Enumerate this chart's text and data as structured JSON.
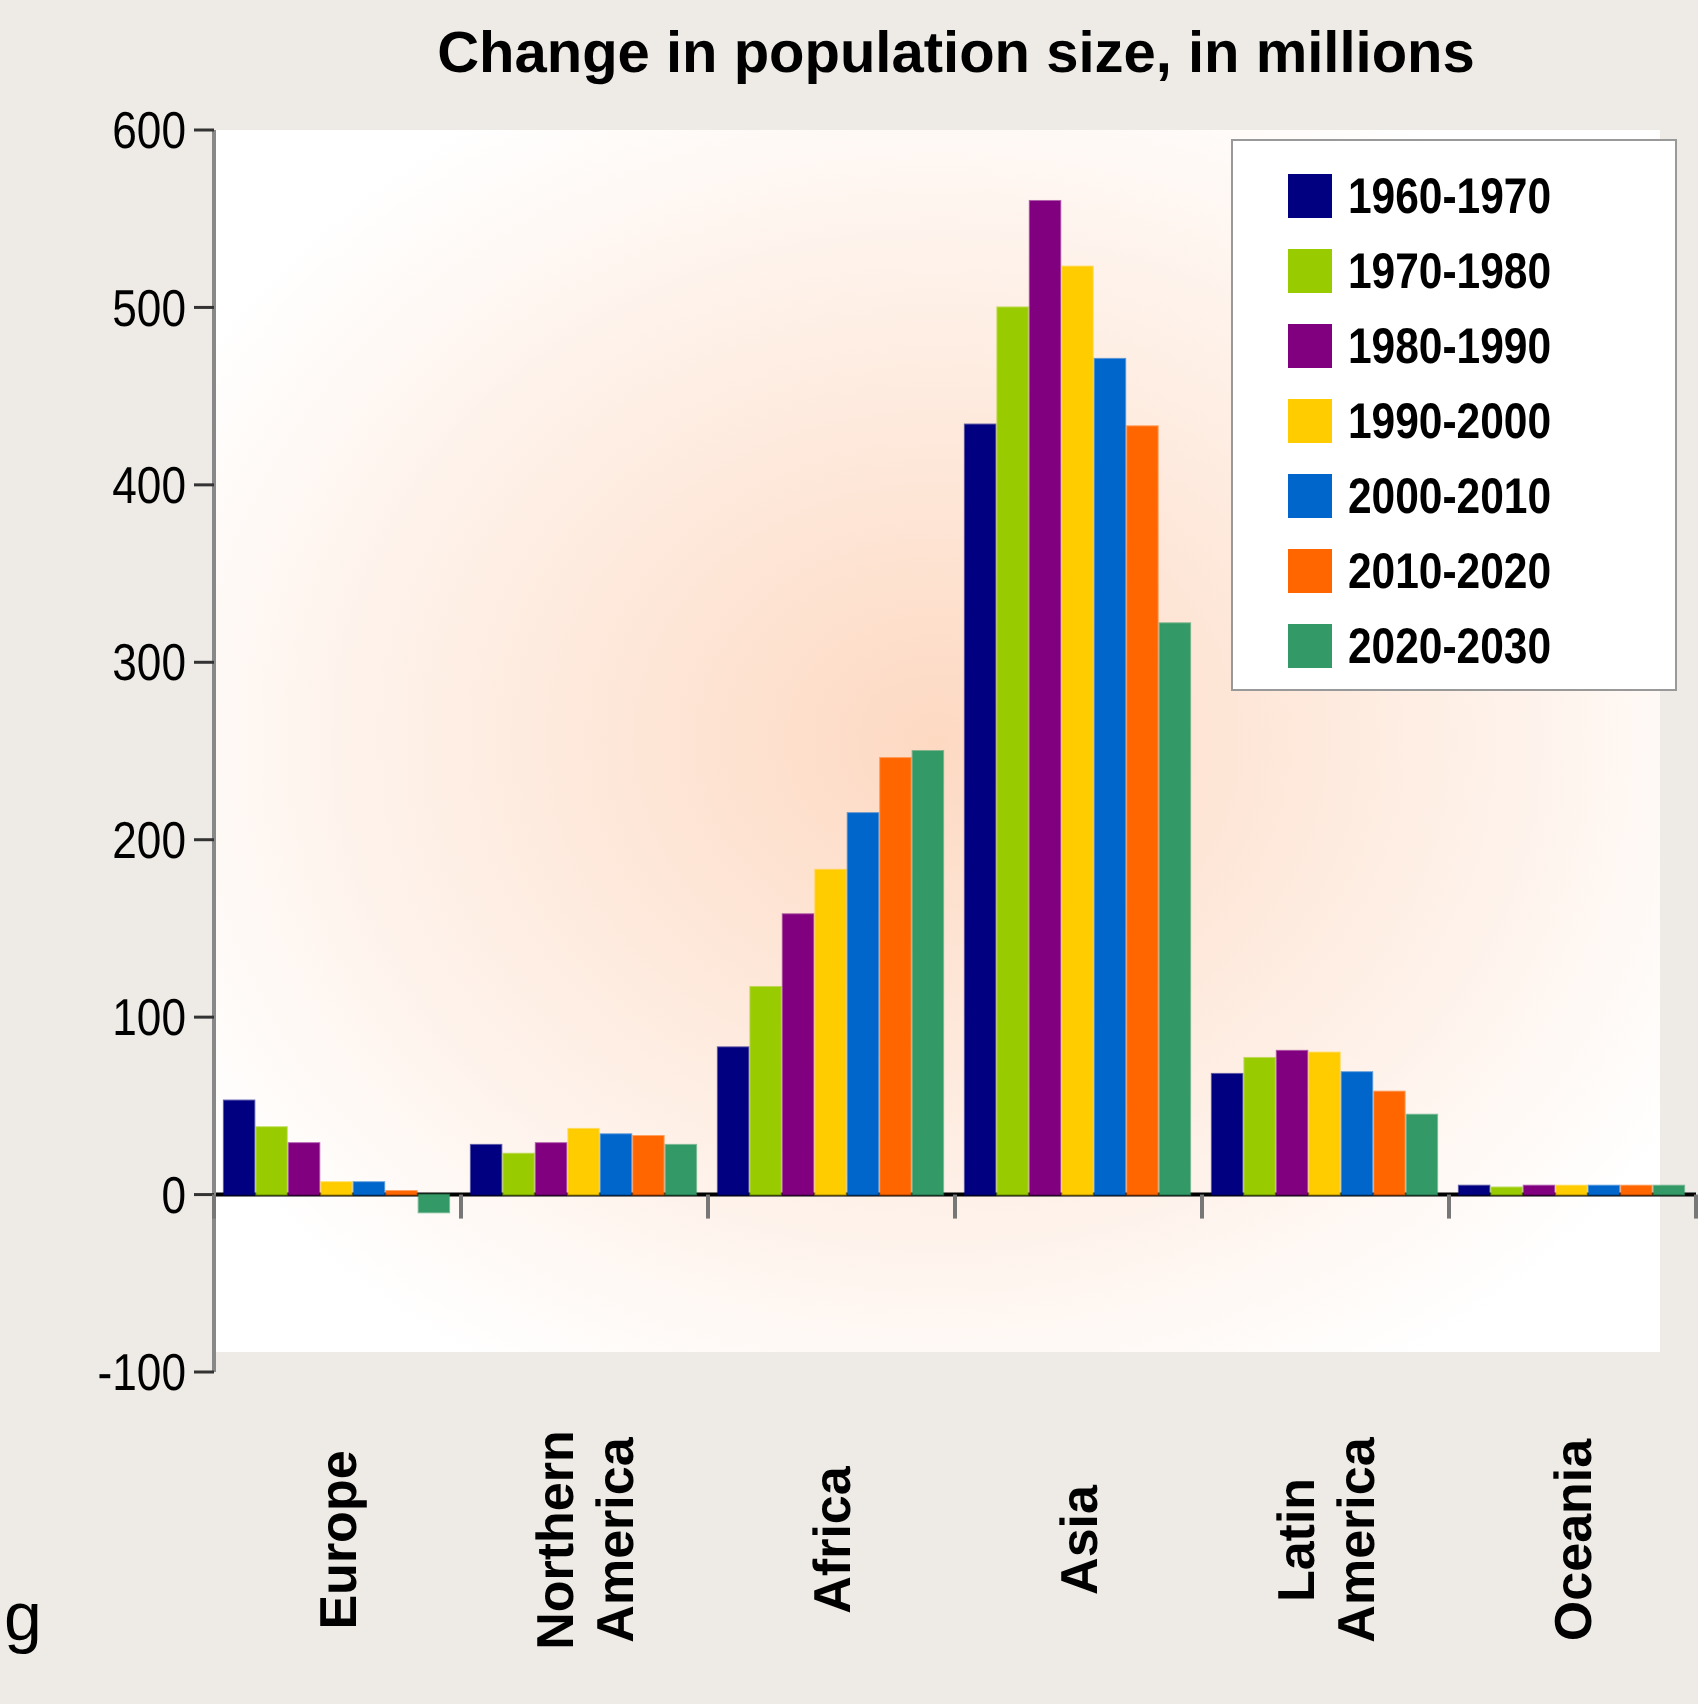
{
  "chart_data": {
    "type": "bar",
    "title": "Change in population size, in millions",
    "categories": [
      "Europe",
      "Northern America",
      "Africa",
      "Asia",
      "Latin America",
      "Oceania"
    ],
    "series": [
      {
        "name": "1960-1970",
        "color": "#000080",
        "values": [
          53,
          28,
          83,
          434,
          68,
          5
        ]
      },
      {
        "name": "1970-1980",
        "color": "#99cc00",
        "values": [
          38,
          23,
          117,
          500,
          77,
          4
        ]
      },
      {
        "name": "1980-1990",
        "color": "#800080",
        "values": [
          29,
          29,
          158,
          560,
          81,
          5
        ]
      },
      {
        "name": "1990-2000",
        "color": "#ffcc00",
        "values": [
          7,
          37,
          183,
          523,
          80,
          5
        ]
      },
      {
        "name": "2000-2010",
        "color": "#0066cc",
        "values": [
          7,
          34,
          215,
          471,
          69,
          5
        ]
      },
      {
        "name": "2010-2020",
        "color": "#ff6600",
        "values": [
          2,
          33,
          246,
          433,
          58,
          5
        ]
      },
      {
        "name": "2020-2030",
        "color": "#339966",
        "values": [
          -10,
          28,
          250,
          322,
          45,
          5
        ]
      }
    ],
    "ylim": [
      -100,
      600
    ],
    "yticks": [
      -100,
      0,
      100,
      200,
      300,
      400,
      500,
      600
    ],
    "legend": "top right",
    "annotations": [
      "g"
    ]
  }
}
